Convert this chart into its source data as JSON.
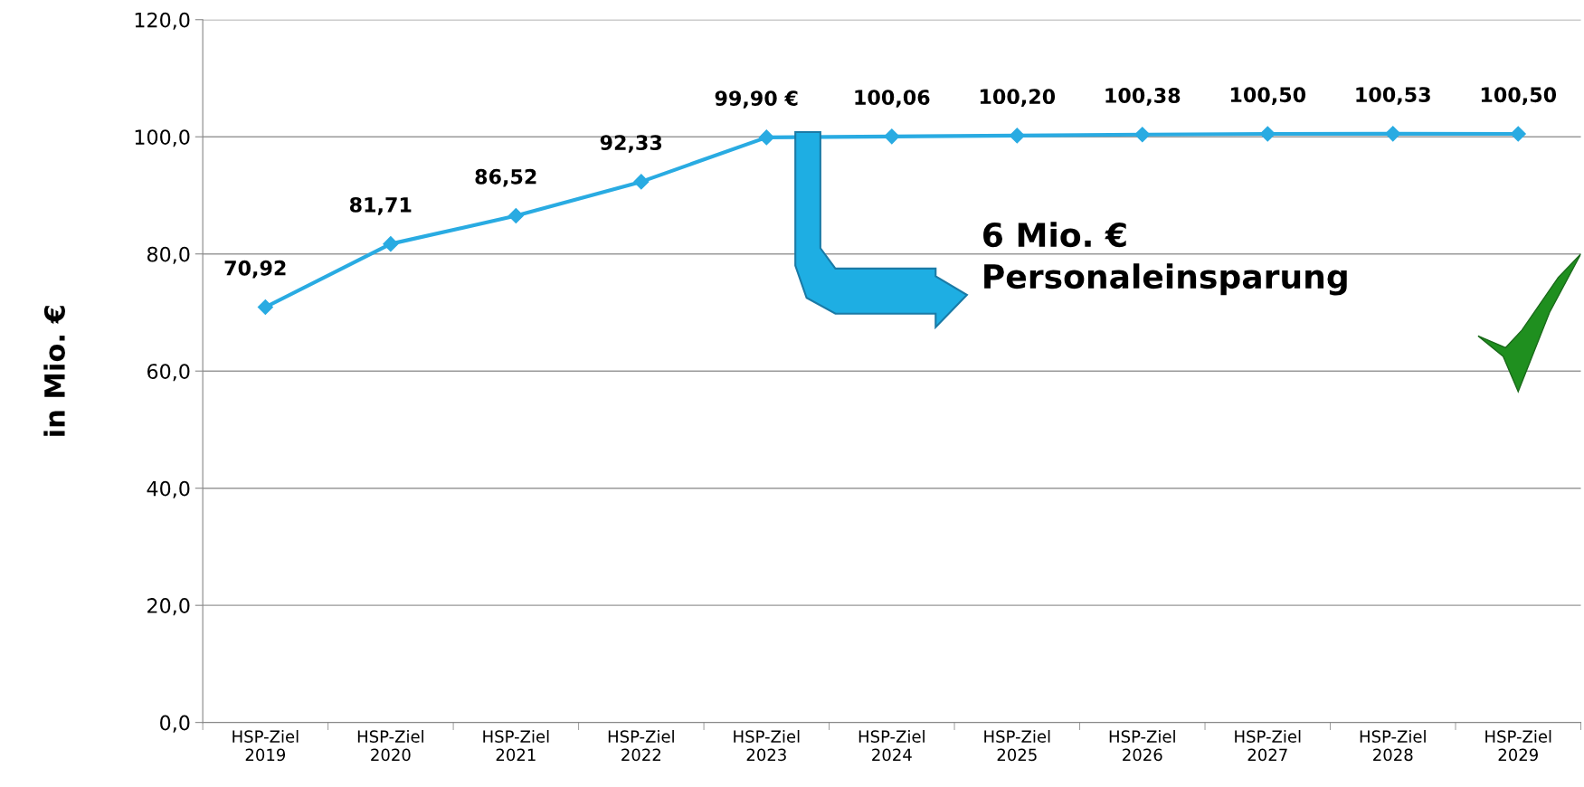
{
  "chart_data": {
    "type": "line",
    "ylabel": "in Mio. €",
    "categories": [
      "HSP-Ziel\n2019",
      "HSP-Ziel\n2020",
      "HSP-Ziel\n2021",
      "HSP-Ziel\n2022",
      "HSP-Ziel\n2023",
      "HSP-Ziel\n2024",
      "HSP-Ziel\n2025",
      "HSP-Ziel\n2026",
      "HSP-Ziel\n2027",
      "HSP-Ziel\n2028",
      "HSP-Ziel\n2029"
    ],
    "series": [
      {
        "color": "#29abe2",
        "values": [
          70.92,
          81.71,
          86.52,
          92.33,
          99.9,
          100.06,
          100.2,
          100.38,
          100.5,
          100.53,
          100.5
        ],
        "value_labels": [
          "70,92",
          "81,71",
          "86,52",
          "92,33",
          "99,90 €",
          "100,06",
          "100,20",
          "100,38",
          "100,50",
          "100,53",
          "100,50"
        ]
      }
    ],
    "ylim": [
      0,
      120
    ],
    "yticks": [
      {
        "value": 0,
        "label": "0,0"
      },
      {
        "value": 20,
        "label": "20,0"
      },
      {
        "value": 40,
        "label": "40,0"
      },
      {
        "value": 60,
        "label": "60,0"
      },
      {
        "value": 80,
        "label": "80,0"
      },
      {
        "value": 100,
        "label": "100,0"
      },
      {
        "value": 120,
        "label": "120,0"
      }
    ],
    "grid": "y",
    "marker": "diamond",
    "line_style": "solid",
    "annotations": [
      "6 Mio. €\nPersonaleinsparung"
    ]
  }
}
